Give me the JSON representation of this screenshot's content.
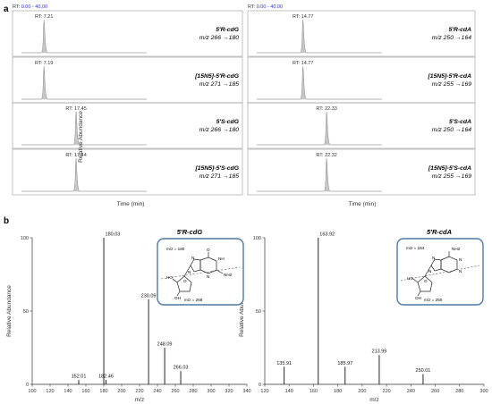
{
  "panel_a": {
    "label": "a",
    "y_axis_label": "Relative Abundance",
    "x_axis_label": "Time (min)",
    "columns": [
      {
        "rt_range": "RT: 0.00 - 40.00",
        "rows": [
          {
            "peak_label": "RT: 7.21",
            "compound": "5′R-cdG",
            "transition": "m/z  266 →180"
          },
          {
            "peak_label": "RT: 7.19",
            "compound": "[15N5]-5′R-cdG",
            "transition": "m/z  271 →185"
          },
          {
            "peak_label": "RT: 17.45",
            "compound": "5′S-cdG",
            "transition": "m/z  266 →180"
          },
          {
            "peak_label": "RT: 17.44",
            "compound": "[15N5]-5′S-cdG",
            "transition": "m/z  271 →185"
          }
        ]
      },
      {
        "rt_range": "RT: 0.00 - 40.00",
        "rows": [
          {
            "peak_label": "RT: 14.77",
            "compound": "5′R-cdA",
            "transition": "m/z  250 →164"
          },
          {
            "peak_label": "RT: 14.77",
            "compound": "[15N5]-5′R-cdA",
            "transition": "m/z  255 →169"
          },
          {
            "peak_label": "RT: 22.33",
            "compound": "5′S-cdA",
            "transition": "m/z  250 →164"
          },
          {
            "peak_label": "RT: 22.32",
            "compound": "[15N5]-5′S-cdA",
            "transition": "m/z  255 →169"
          }
        ]
      }
    ]
  },
  "panel_b": {
    "label": "b",
    "spectra": [
      {
        "title": "5′R-cdG",
        "ylabel": "Relative Abundance",
        "xlabel": "m/z",
        "fragment_top": "m/z = 180",
        "fragment_bottom": "m/z = 266",
        "structure_labels": [
          "O",
          "N",
          "NH",
          "N",
          "NH2",
          "N",
          "HO",
          "O",
          "OH"
        ]
      },
      {
        "title": "5′R-cdA",
        "ylabel": "Relative Abundance",
        "xlabel": "m/z",
        "fragment_top": "m/z = 164",
        "fragment_bottom": "m/z = 250",
        "structure_labels": [
          "NH2",
          "N",
          "N",
          "N",
          "N",
          "HO",
          "O",
          "OH"
        ]
      }
    ]
  },
  "chart_data": [
    {
      "type": "line",
      "subtype": "chromatogram",
      "xlabel": "Time (min)",
      "ylabel": "Relative Abundance",
      "xlim": [
        0,
        40
      ],
      "series": [
        {
          "name": "5′R-cdG",
          "peak_x": 7.21
        },
        {
          "name": "[15N5]-5′R-cdG",
          "peak_x": 7.19
        },
        {
          "name": "5′S-cdG",
          "peak_x": 17.45
        },
        {
          "name": "[15N5]-5′S-cdG",
          "peak_x": 17.44
        }
      ]
    },
    {
      "type": "line",
      "subtype": "chromatogram",
      "xlabel": "Time (min)",
      "ylabel": "Relative Abundance",
      "xlim": [
        0,
        40
      ],
      "series": [
        {
          "name": "5′R-cdA",
          "peak_x": 14.77
        },
        {
          "name": "[15N5]-5′R-cdA",
          "peak_x": 14.77
        },
        {
          "name": "5′S-cdA",
          "peak_x": 22.33
        },
        {
          "name": "[15N5]-5′S-cdA",
          "peak_x": 22.32
        }
      ]
    },
    {
      "type": "bar",
      "subtype": "mass_spectrum",
      "title": "5′R-cdG",
      "xlabel": "m/z",
      "ylabel": "Relative Abundance",
      "xlim": [
        100,
        340
      ],
      "ylim": [
        0,
        100
      ],
      "xticks": [
        100,
        120,
        140,
        160,
        180,
        200,
        220,
        240,
        260,
        280,
        300,
        320,
        340
      ],
      "yticks": [
        0,
        50,
        100
      ],
      "peaks": [
        {
          "x": 152.01,
          "y": 3
        },
        {
          "x": 180.03,
          "y": 100
        },
        {
          "x": 182.46,
          "y": 3
        },
        {
          "x": 230.09,
          "y": 58
        },
        {
          "x": 248.09,
          "y": 25
        },
        {
          "x": 266.03,
          "y": 9
        }
      ]
    },
    {
      "type": "bar",
      "subtype": "mass_spectrum",
      "title": "5′R-cdA",
      "xlabel": "m/z",
      "ylabel": "Relative Abundance",
      "xlim": [
        120,
        300
      ],
      "ylim": [
        0,
        100
      ],
      "xticks": [
        120,
        140,
        160,
        180,
        200,
        220,
        240,
        260,
        280,
        300
      ],
      "yticks": [
        0,
        50,
        100
      ],
      "peaks": [
        {
          "x": 135.91,
          "y": 12
        },
        {
          "x": 163.92,
          "y": 100
        },
        {
          "x": 185.97,
          "y": 12
        },
        {
          "x": 213.99,
          "y": 20
        },
        {
          "x": 250.01,
          "y": 7
        }
      ]
    }
  ]
}
